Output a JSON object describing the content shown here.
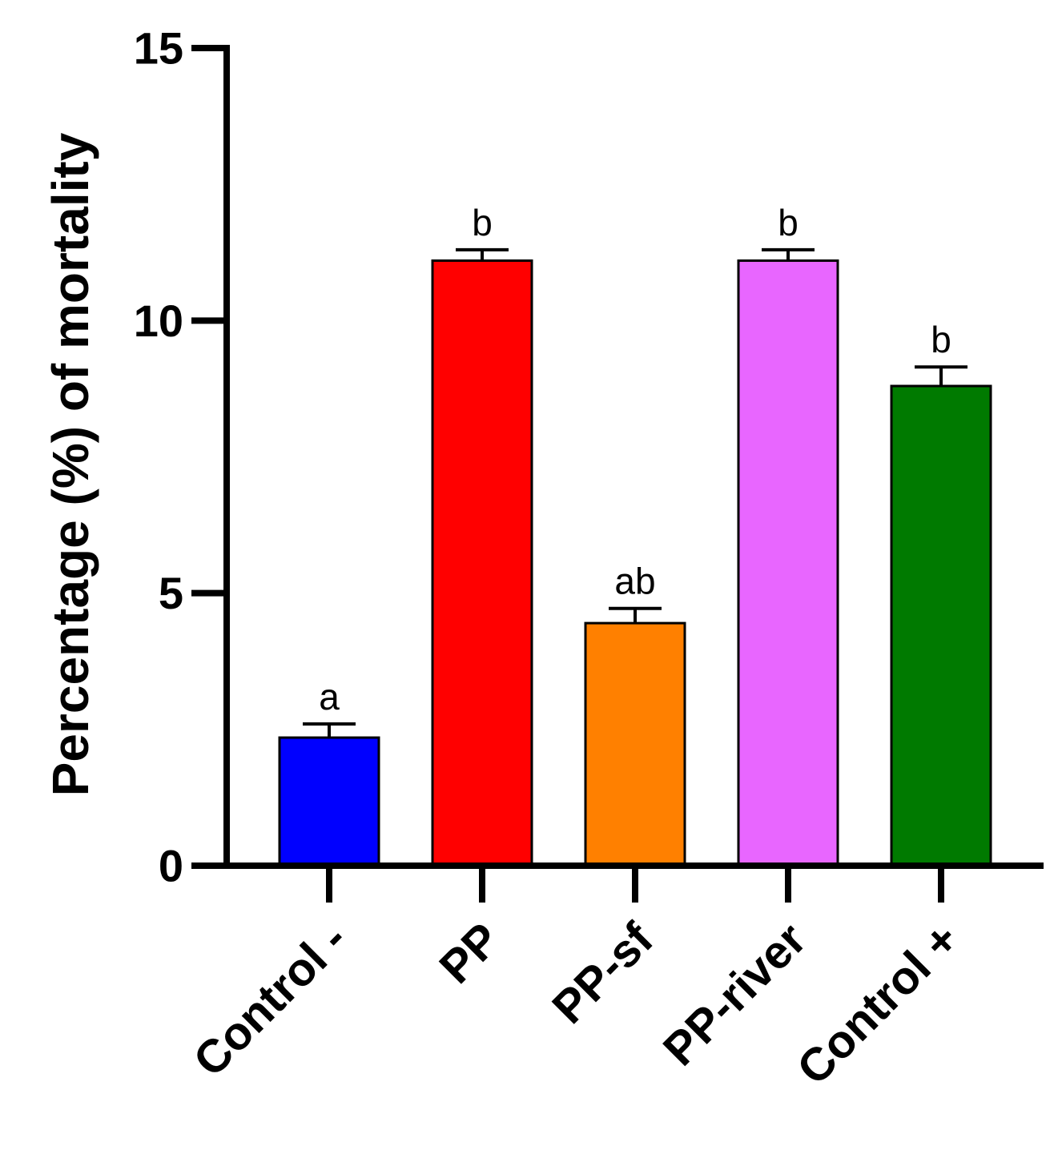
{
  "chart_data": {
    "type": "bar",
    "title": "",
    "xlabel": "",
    "ylabel": "Percentage (%) of mortality",
    "ylim": [
      0,
      15
    ],
    "yticks": [
      "0",
      "5",
      "10",
      "15"
    ],
    "categories": [
      "Control -",
      "PP",
      "PP-sf",
      "PP-river",
      "Control +"
    ],
    "values": [
      2.35,
      11.1,
      4.45,
      11.1,
      8.8
    ],
    "errors": [
      0.25,
      0.2,
      0.27,
      0.2,
      0.35
    ],
    "significance": [
      "a",
      "b",
      "ab",
      "b",
      "b"
    ],
    "colors": [
      "#0000ff",
      "#ff0000",
      "#ff8000",
      "#e866ff",
      "#007a00"
    ],
    "grid": false,
    "legend": "none"
  }
}
